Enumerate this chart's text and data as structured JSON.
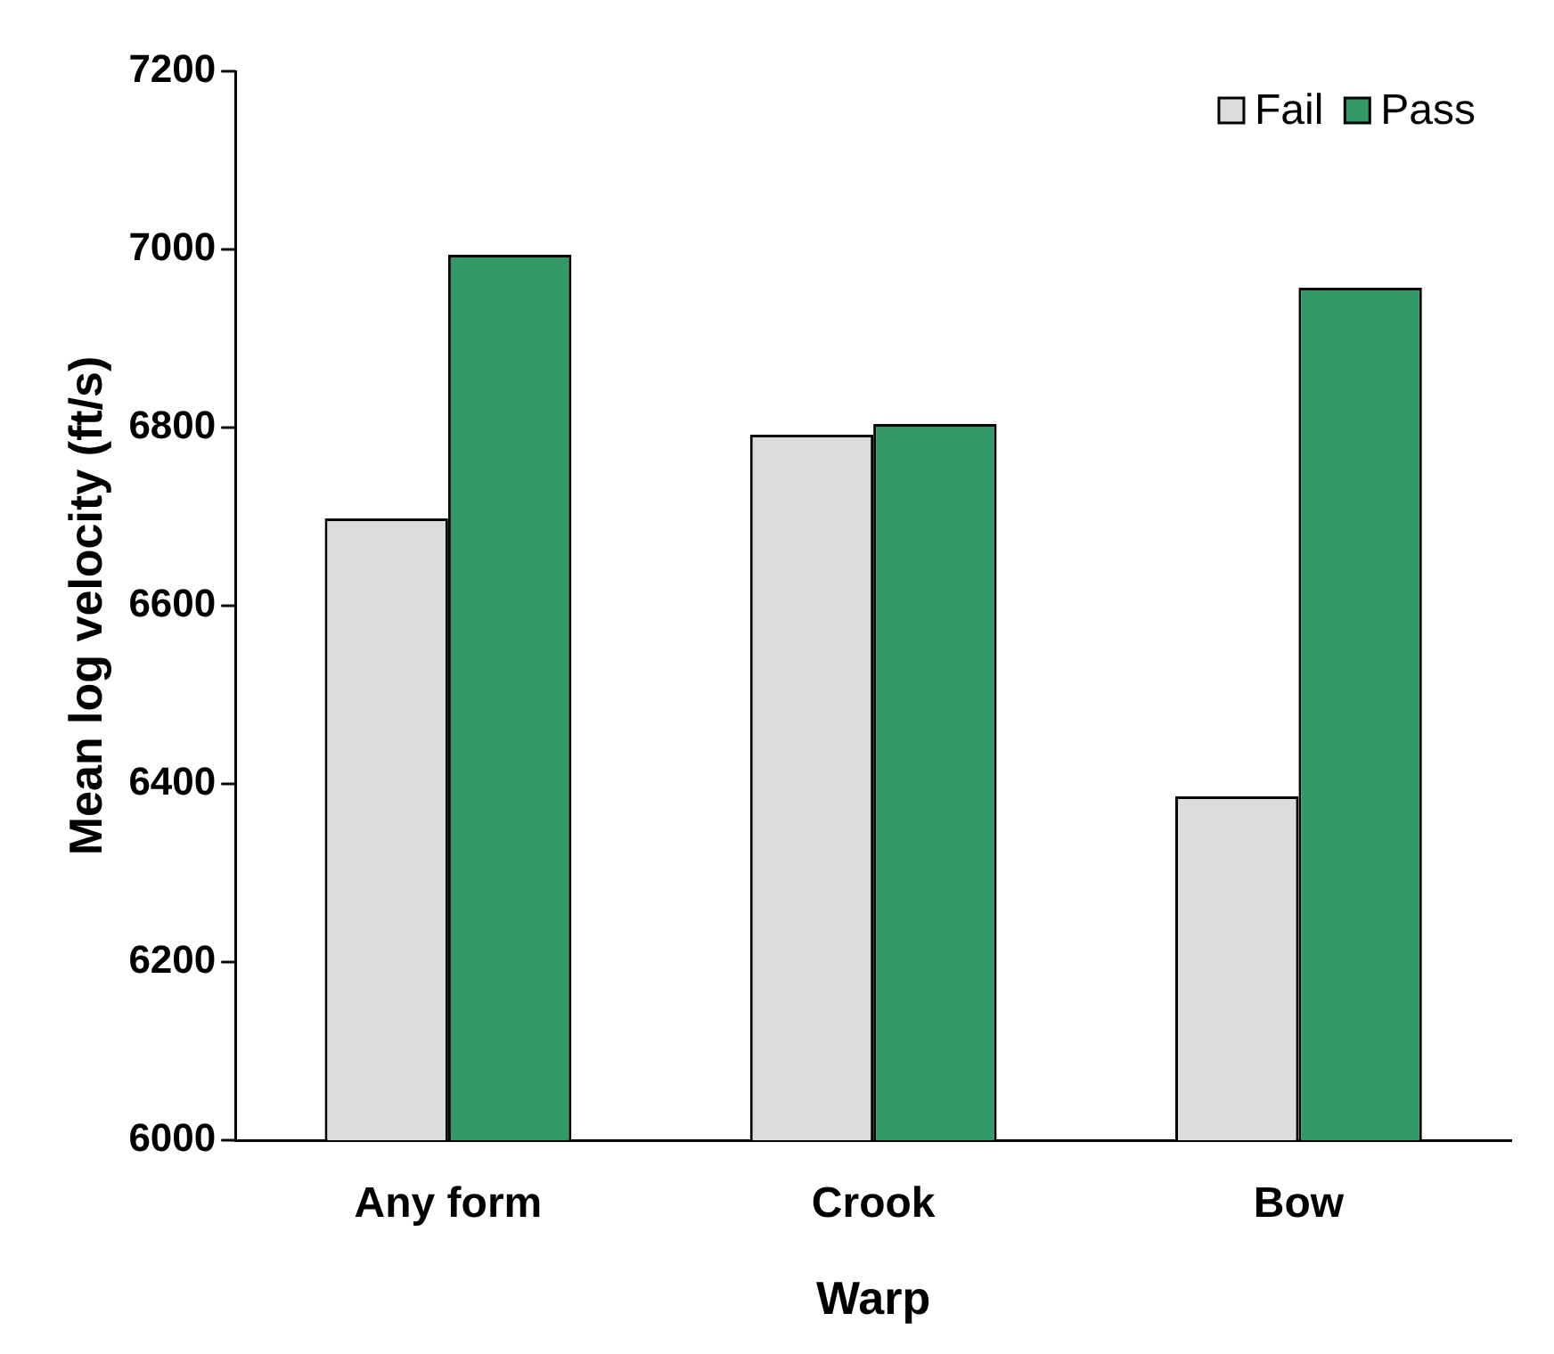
{
  "chart_data": {
    "type": "bar",
    "xlabel": "Warp",
    "ylabel": "Mean log velocity (ft/s)",
    "categories": [
      "Any form",
      "Crook",
      "Bow"
    ],
    "series": [
      {
        "name": "Fail",
        "color": "#dcdcdc",
        "values": [
          6698,
          6792,
          6386
        ]
      },
      {
        "name": "Pass",
        "color": "#339966",
        "values": [
          6994,
          6804,
          6957
        ]
      }
    ],
    "ylim": [
      6000,
      7200
    ],
    "yticks": [
      6000,
      6200,
      6400,
      6600,
      6800,
      7000,
      7200
    ],
    "legend": "top right"
  }
}
